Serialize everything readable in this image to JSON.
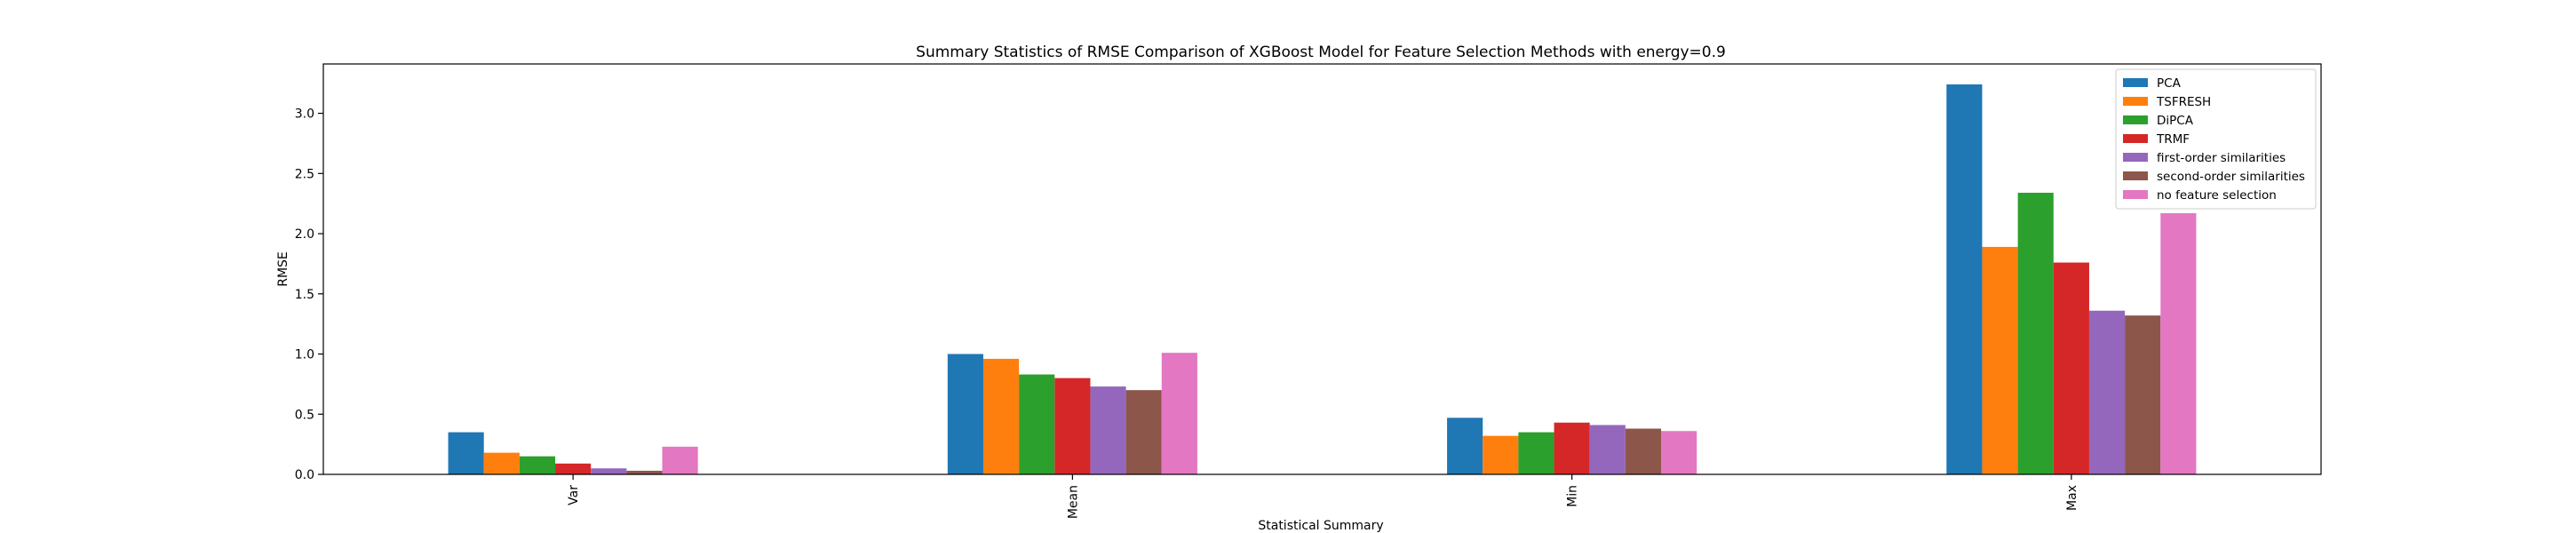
{
  "chart_data": {
    "type": "bar",
    "title": "Summary Statistics of RMSE Comparison of XGBoost Model for Feature Selection Methods with energy=0.9",
    "xlabel": "Statistical Summary",
    "ylabel": "RMSE",
    "categories": [
      "Var",
      "Mean",
      "Min",
      "Max"
    ],
    "ylim": [
      0,
      3.41
    ],
    "yticks": [
      "0.0",
      "0.5",
      "1.0",
      "1.5",
      "2.0",
      "2.5",
      "3.0"
    ],
    "grid": false,
    "legend_position": "top-right",
    "series": [
      {
        "name": "PCA",
        "color": "#1f77b4",
        "values": [
          0.35,
          1.0,
          0.47,
          3.24
        ]
      },
      {
        "name": "TSFRESH",
        "color": "#ff7f0e",
        "values": [
          0.18,
          0.96,
          0.32,
          1.89
        ]
      },
      {
        "name": "DiPCA",
        "color": "#2ca02c",
        "values": [
          0.15,
          0.83,
          0.35,
          2.34
        ]
      },
      {
        "name": "TRMF",
        "color": "#d62728",
        "values": [
          0.09,
          0.8,
          0.43,
          1.76
        ]
      },
      {
        "name": "first-order similarities",
        "color": "#9467bd",
        "values": [
          0.05,
          0.73,
          0.41,
          1.36
        ]
      },
      {
        "name": "second-order similarities",
        "color": "#8c564b",
        "values": [
          0.03,
          0.7,
          0.38,
          1.32
        ]
      },
      {
        "name": "no feature selection",
        "color": "#e377c2",
        "values": [
          0.23,
          1.01,
          0.36,
          2.17
        ]
      }
    ]
  }
}
